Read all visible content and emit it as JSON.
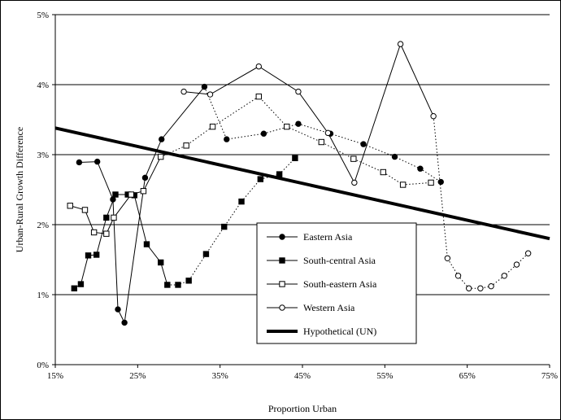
{
  "chart_data": {
    "type": "line",
    "title": "",
    "xlabel": "Proportion Urban",
    "ylabel": "Urban-Rural Growth Difference",
    "xlim": [
      15,
      75
    ],
    "ylim": [
      0,
      5
    ],
    "x_ticks": [
      15,
      25,
      35,
      45,
      55,
      65,
      75
    ],
    "x_tick_labels": [
      "15%",
      "25%",
      "35%",
      "45%",
      "55%",
      "65%",
      "75%"
    ],
    "y_ticks": [
      0,
      1,
      2,
      3,
      4,
      5
    ],
    "y_tick_labels": [
      "0%",
      "1%",
      "2%",
      "3%",
      "4%",
      "5%"
    ],
    "grid": "horizontal",
    "legend_position": "center-right",
    "series": [
      {
        "name": "Eastern Asia",
        "marker": "filled-circle",
        "segments": [
          {
            "style": "solid",
            "x": [
              17.9,
              20.1,
              22.0,
              22.6,
              23.4,
              25.9,
              27.9,
              33.1
            ],
            "y": [
              2.89,
              2.9,
              2.36,
              0.79,
              0.6,
              2.67,
              3.22,
              3.97
            ]
          },
          {
            "style": "dotted",
            "x": [
              33.1,
              35.8,
              40.3,
              44.5,
              48.4,
              52.4,
              56.2,
              59.3,
              61.8
            ],
            "y": [
              3.97,
              3.22,
              3.3,
              3.44,
              3.3,
              3.15,
              2.97,
              2.8,
              2.61
            ]
          }
        ]
      },
      {
        "name": "South-central Asia",
        "marker": "filled-square",
        "segments": [
          {
            "style": "solid",
            "x": [
              17.3,
              18.1,
              19.0,
              20.0,
              21.2,
              22.3,
              23.8,
              24.6,
              26.1,
              27.8,
              28.6
            ],
            "y": [
              1.09,
              1.15,
              1.56,
              1.57,
              2.1,
              2.43,
              2.43,
              2.42,
              1.72,
              1.46,
              1.14
            ]
          },
          {
            "style": "dotted",
            "x": [
              28.6,
              29.9,
              31.2,
              33.3,
              35.5,
              37.6,
              39.9,
              42.2,
              44.1
            ],
            "y": [
              1.14,
              1.14,
              1.2,
              1.58,
              1.97,
              2.33,
              2.65,
              2.72,
              2.95
            ]
          }
        ]
      },
      {
        "name": "South-eastern Asia",
        "marker": "open-square",
        "segments": [
          {
            "style": "solid",
            "x": [
              16.8,
              18.6,
              19.7,
              21.2,
              22.1,
              24.2,
              25.7,
              27.8
            ],
            "y": [
              2.27,
              2.21,
              1.89,
              1.87,
              2.1,
              2.43,
              2.48,
              2.97
            ]
          },
          {
            "style": "dotted",
            "x": [
              27.8,
              30.9,
              34.1,
              39.7,
              43.1,
              47.3,
              51.2,
              54.8,
              57.2,
              60.6
            ],
            "y": [
              2.97,
              3.13,
              3.4,
              3.83,
              3.4,
              3.18,
              2.94,
              2.75,
              2.57,
              2.6
            ]
          }
        ]
      },
      {
        "name": "Western Asia",
        "marker": "open-circle",
        "segments": [
          {
            "style": "solid",
            "x": [
              30.6,
              33.8,
              39.7,
              44.5,
              48.1,
              51.3,
              56.9,
              60.9
            ],
            "y": [
              3.9,
              3.86,
              4.26,
              3.9,
              3.31,
              2.6,
              4.58,
              3.55
            ]
          },
          {
            "style": "dotted",
            "x": [
              60.9,
              62.6,
              63.9,
              65.2,
              66.6,
              67.9,
              69.5,
              71.0,
              72.4
            ],
            "y": [
              3.55,
              1.52,
              1.27,
              1.09,
              1.09,
              1.12,
              1.27,
              1.43,
              1.59
            ]
          }
        ]
      },
      {
        "name": "Hypothetical (UN)",
        "marker": "none",
        "style": "thick",
        "x": [
          15,
          75
        ],
        "y": [
          3.38,
          1.8
        ]
      }
    ]
  }
}
